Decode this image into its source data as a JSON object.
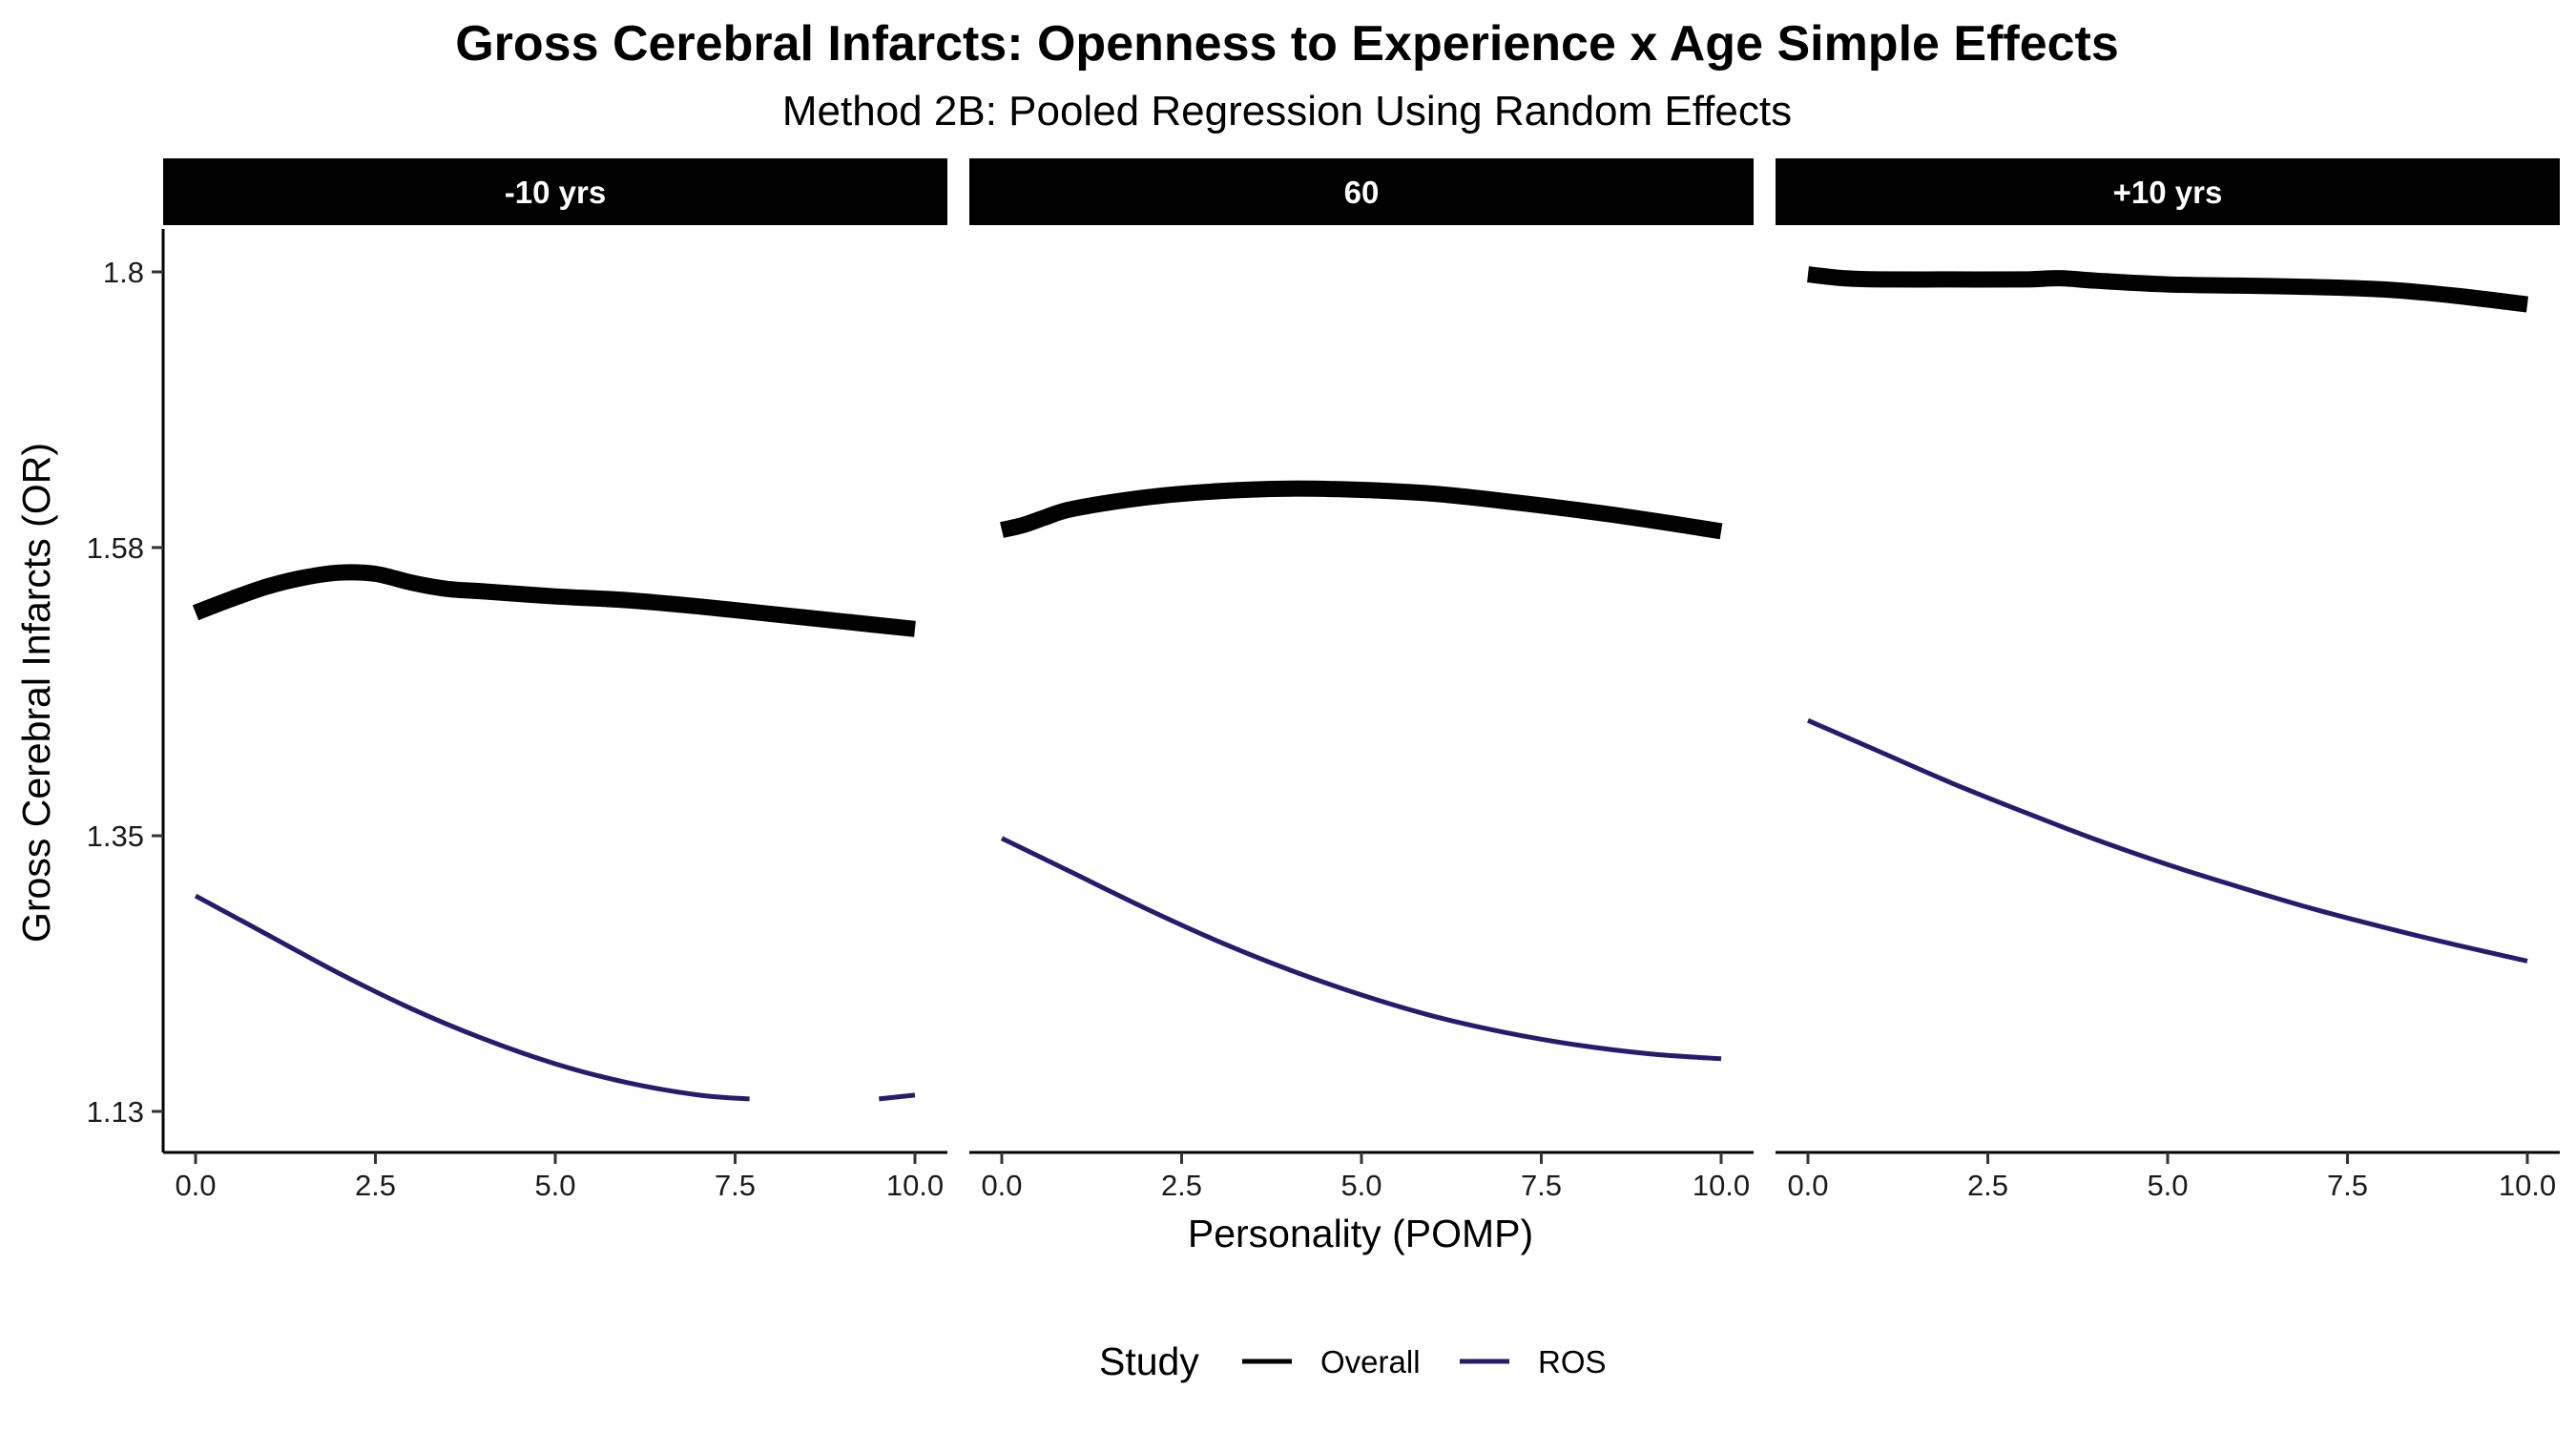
{
  "title": "Gross Cerebral Infarcts: Openness to Experience x Age Simple Effects",
  "subtitle": "Method 2B: Pooled Regression Using Random Effects",
  "chart_data": {
    "type": "line",
    "title": "Gross Cerebral Infarcts: Openness to Experience x Age Simple Effects",
    "subtitle": "Method 2B: Pooled Regression Using Random Effects",
    "xlabel": "Personality (POMP)",
    "ylabel": "Gross Cerebral Infarcts (OR)",
    "xlim": [
      -0.5,
      10.5
    ],
    "ylim": [
      1.1,
      1.82
    ],
    "x_ticks": [
      0,
      2.5,
      5,
      7.5,
      10
    ],
    "x_tick_labels": [
      "0.0",
      "2.5",
      "5.0",
      "7.5",
      "10.0"
    ],
    "y_ticks": [
      1.13,
      1.35,
      1.58,
      1.8
    ],
    "y_tick_labels": [
      "1.13",
      "1.35",
      "1.58",
      "1.8"
    ],
    "grid": false,
    "legend": {
      "title": "Study",
      "position": "bottom",
      "entries": [
        {
          "label": "Overall",
          "color": "#000000"
        },
        {
          "label": "ROS",
          "color": "#2a1a6e"
        }
      ]
    },
    "facets": [
      {
        "label": "-10 yrs",
        "series": [
          {
            "name": "Overall",
            "color": "#000000",
            "x": [
              0,
              0.5,
              1,
              1.5,
              2,
              2.5,
              3,
              3.5,
              4,
              5,
              6,
              7,
              8,
              9,
              10
            ],
            "y": [
              1.528,
              1.539,
              1.549,
              1.556,
              1.56,
              1.559,
              1.552,
              1.547,
              1.545,
              1.541,
              1.538,
              1.533,
              1.527,
              1.521,
              1.515
            ]
          },
          {
            "name": "ROS",
            "color": "#2a1a6e",
            "x": [
              0,
              1,
              2,
              3,
              4,
              5,
              6,
              7,
              7.7,
              null,
              9.5,
              10
            ],
            "y": [
              1.302,
              1.271,
              1.24,
              1.212,
              1.188,
              1.168,
              1.153,
              1.143,
              1.14,
              null,
              1.14,
              1.143
            ]
          }
        ]
      },
      {
        "label": "60",
        "series": [
          {
            "name": "Overall",
            "color": "#000000",
            "x": [
              0,
              0.3,
              0.6,
              1,
              2,
              3,
              4,
              5,
              6,
              7,
              8,
              9,
              10
            ],
            "y": [
              1.594,
              1.598,
              1.604,
              1.611,
              1.62,
              1.625,
              1.627,
              1.626,
              1.623,
              1.617,
              1.61,
              1.602,
              1.593
            ]
          },
          {
            "name": "ROS",
            "color": "#2a1a6e",
            "x": [
              0,
              1,
              2,
              3,
              4,
              5,
              6,
              7,
              8,
              9,
              10
            ],
            "y": [
              1.348,
              1.32,
              1.292,
              1.266,
              1.243,
              1.223,
              1.206,
              1.193,
              1.183,
              1.176,
              1.172
            ]
          }
        ]
      },
      {
        "label": "+10 yrs",
        "series": [
          {
            "name": "Overall",
            "color": "#000000",
            "x": [
              0,
              0.5,
              1,
              2,
              3,
              3.5,
              4,
              5,
              6,
              7,
              8,
              9,
              10
            ],
            "y": [
              1.798,
              1.795,
              1.794,
              1.794,
              1.794,
              1.795,
              1.793,
              1.79,
              1.789,
              1.788,
              1.786,
              1.781,
              1.774
            ]
          },
          {
            "name": "ROS",
            "color": "#2a1a6e",
            "x": [
              0,
              1,
              2,
              3,
              4,
              5,
              6,
              7,
              8,
              9,
              10
            ],
            "y": [
              1.442,
              1.417,
              1.392,
              1.369,
              1.347,
              1.327,
              1.309,
              1.292,
              1.277,
              1.263,
              1.25
            ]
          }
        ]
      }
    ]
  }
}
